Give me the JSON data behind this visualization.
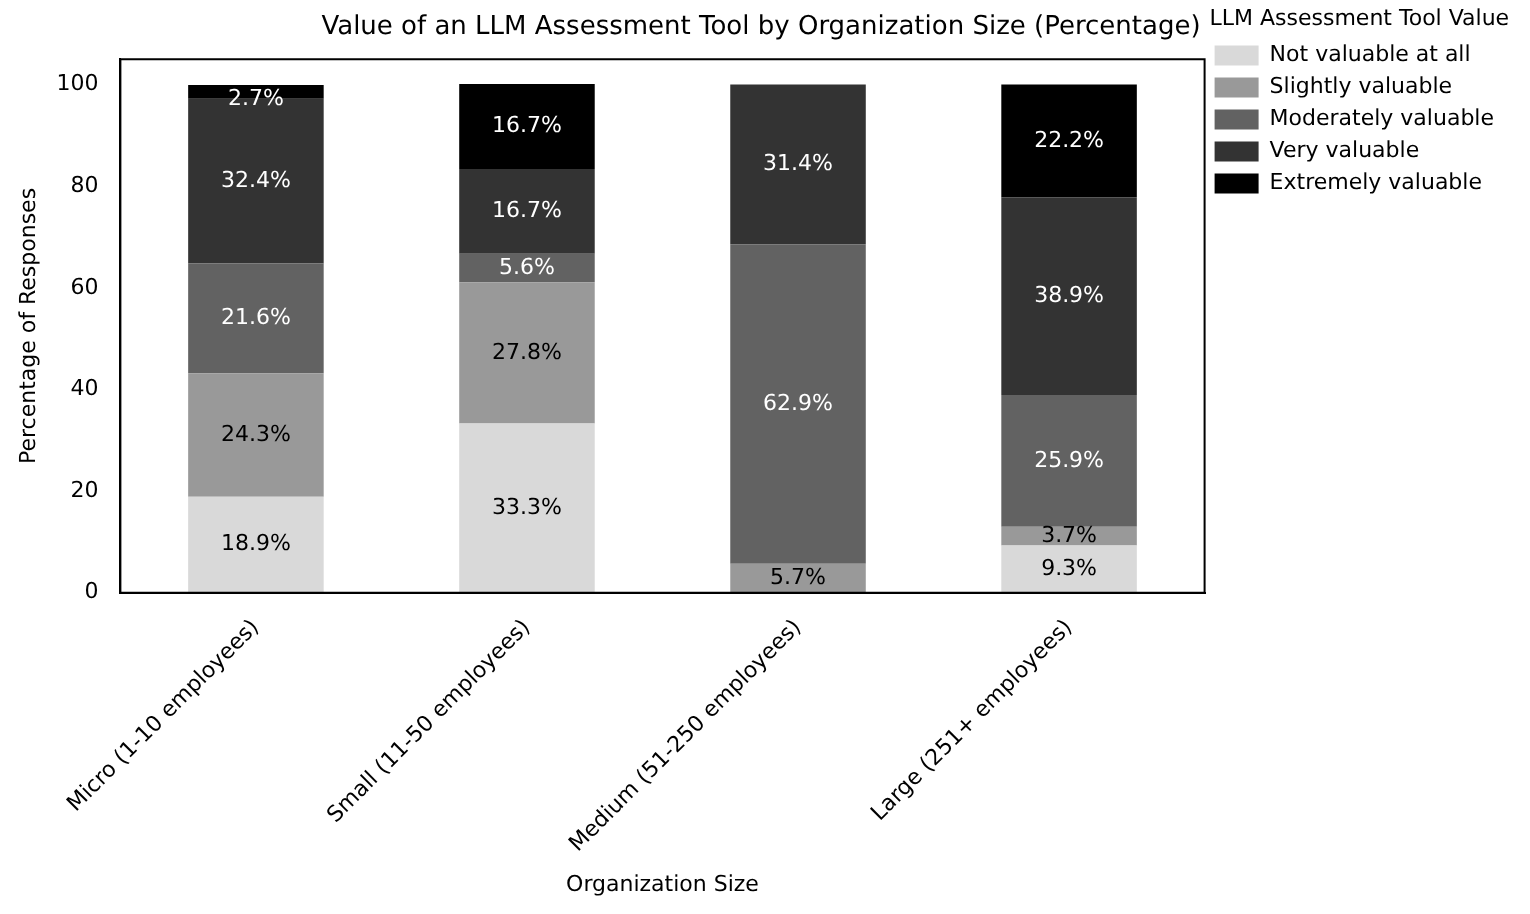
{
  "chart_data": {
    "type": "bar",
    "title": "Value of an LLM Assessment Tool by Organization Size (Percentage)",
    "xlabel": "Organization Size",
    "ylabel": "Percentage of Responses",
    "legend_title": "LLM Assessment Tool Value",
    "categories": [
      "Micro (1-10 employees)",
      "Small (11-50 employees)",
      "Medium (51-250 employees)",
      "Large (251+ employees)"
    ],
    "stacked": true,
    "series": [
      {
        "name": "Not valuable at all",
        "color": "#d9d9d9",
        "values": [
          18.9,
          33.3,
          0,
          9.3
        ],
        "value_labels": [
          "18.9%",
          "33.3%",
          null,
          "9.3%"
        ]
      },
      {
        "name": "Slightly valuable",
        "color": "#999999",
        "values": [
          24.3,
          27.8,
          5.7,
          3.7
        ],
        "value_labels": [
          "24.3%",
          "27.8%",
          "5.7%",
          "3.7%"
        ]
      },
      {
        "name": "Moderately valuable",
        "color": "#626262",
        "values": [
          21.6,
          5.6,
          62.9,
          25.9
        ],
        "value_labels": [
          "21.6%",
          "5.6%",
          "62.9%",
          "25.9%"
        ]
      },
      {
        "name": "Very valuable",
        "color": "#333333",
        "values": [
          32.4,
          16.7,
          31.4,
          38.9
        ],
        "value_labels": [
          "32.4%",
          "16.7%",
          "31.4%",
          "38.9%"
        ]
      },
      {
        "name": "Extremely valuable",
        "color": "#000000",
        "values": [
          2.7,
          16.7,
          0,
          22.2
        ],
        "value_labels": [
          "2.7%",
          "16.7%",
          null,
          "22.2%"
        ]
      }
    ],
    "ylim": [
      0,
      105
    ],
    "yticks": [
      0,
      20,
      40,
      60,
      80,
      100
    ],
    "grid": false,
    "legend": "top right"
  }
}
